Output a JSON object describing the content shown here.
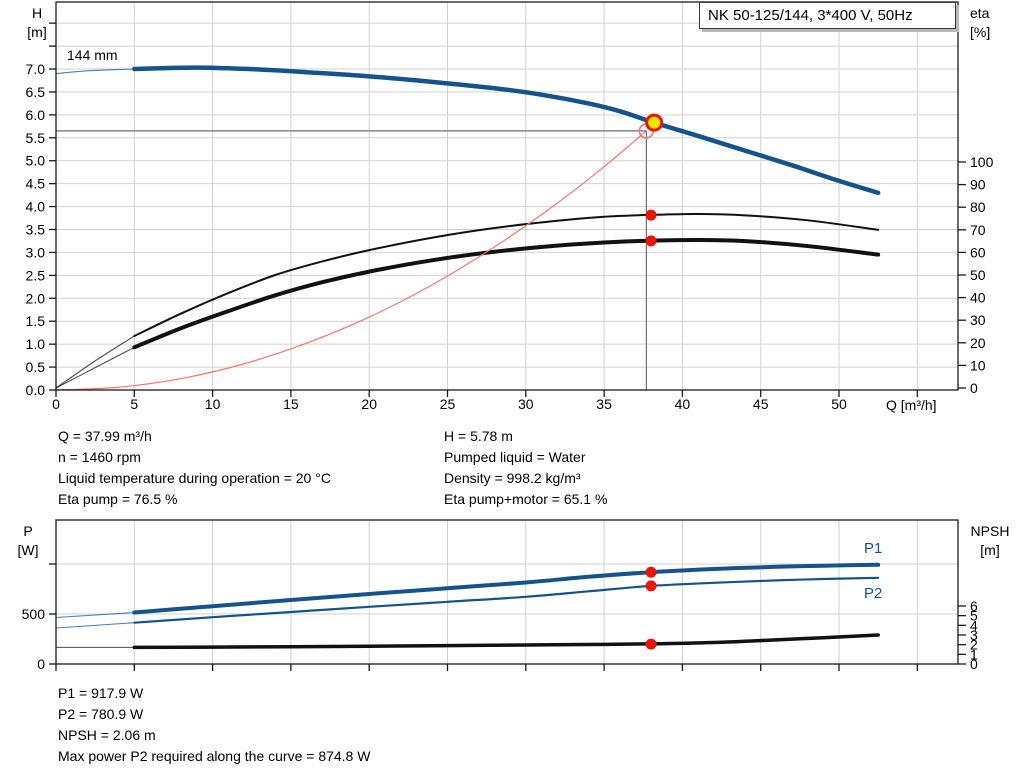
{
  "title_box": {
    "label": "NK 50-125/144, 3*400 V, 50Hz"
  },
  "colors": {
    "blue": "#15538f",
    "black": "#111111",
    "red": "#e81507",
    "red_light": "#f4766d",
    "yellow": "#ffe400",
    "grid": "#d2d2d2",
    "frame": "#1a1a1a",
    "crosshair": "#6e6e6e"
  },
  "labels": {
    "h_axis_1": "H",
    "h_axis_2": "[m]",
    "eta_axis_1": "eta",
    "eta_axis_2": "[%]",
    "q_axis": "Q [m³/h]",
    "p_axis_1": "P",
    "p_axis_2": "[W]",
    "npsh_axis_1": "NPSH",
    "npsh_axis_2": "[m]",
    "impeller": "144 mm",
    "p1_curve": "P1",
    "p2_curve": "P2"
  },
  "info_top": {
    "left": [
      "Q = 37.99 m³/h",
      "n = 1460 rpm",
      "Liquid temperature during operation = 20 °C",
      "Eta pump = 76.5 %"
    ],
    "right": [
      "H = 5.78 m",
      "Pumped liquid = Water",
      "Density = 998.2 kg/m³",
      "Eta pump+motor = 65.1 %"
    ]
  },
  "info_bottom": {
    "lines": [
      "P1 = 917.9 W",
      "P2 = 780.9 W",
      "NPSH = 2.06 m",
      "Max power P2 required along the curve = 874.8 W"
    ]
  },
  "chart_data": [
    {
      "type": "line",
      "id": "qh-eta-chart",
      "title": "NK 50-125/144, 3*400 V, 50Hz",
      "xlabel": "Q [m³/h]",
      "ylabel_left": "H [m]",
      "ylabel_right": "eta [%]",
      "x_range": [
        0,
        57.6
      ],
      "y_left_range": [
        0,
        8.5
      ],
      "y_right_range": [
        0,
        100
      ],
      "x_tick_values": [
        0,
        5,
        10,
        15,
        20,
        25,
        30,
        35,
        40,
        45,
        50,
        55
      ],
      "x_tick_labels": [
        "0",
        "5",
        "10",
        "15",
        "20",
        "25",
        "30",
        "35",
        "40",
        "45",
        "50",
        ""
      ],
      "left_tick_values": [
        0,
        0.5,
        1,
        1.5,
        2,
        2.5,
        3,
        3.5,
        4,
        4.5,
        5,
        5.5,
        6,
        6.5,
        7,
        7.5,
        8
      ],
      "left_tick_labels": [
        "0.0",
        "0.5",
        "1.0",
        "1.5",
        "2.0",
        "2.5",
        "3.0",
        "3.5",
        "4.0",
        "4.5",
        "5.0",
        "5.5",
        "6.0",
        "6.5",
        "7.0",
        "",
        ""
      ],
      "right_tick_values": [
        0,
        10,
        20,
        30,
        40,
        50,
        60,
        70,
        80,
        90,
        100
      ],
      "right_tick_labels": [
        "0",
        "10",
        "20",
        "30",
        "40",
        "50",
        "60",
        "70",
        "80",
        "90",
        "100"
      ],
      "series": [
        {
          "name": "qh-curve-144mm",
          "axis": "left",
          "color": "blue",
          "width": 4.5,
          "thin_until": 5,
          "points": [
            [
              0,
              6.9
            ],
            [
              2,
              6.96
            ],
            [
              5,
              7.0
            ],
            [
              9,
              7.03
            ],
            [
              13,
              6.99
            ],
            [
              16,
              6.93
            ],
            [
              20,
              6.84
            ],
            [
              24,
              6.72
            ],
            [
              28,
              6.58
            ],
            [
              31,
              6.44
            ],
            [
              34,
              6.25
            ],
            [
              36,
              6.08
            ],
            [
              38.2,
              5.83
            ],
            [
              41,
              5.54
            ],
            [
              44,
              5.22
            ],
            [
              47,
              4.9
            ],
            [
              50,
              4.56
            ],
            [
              52.5,
              4.3
            ]
          ]
        },
        {
          "name": "eta-pump-curve",
          "axis": "right",
          "color": "black",
          "width": 2,
          "thin_until": 5,
          "points": [
            [
              0,
              0
            ],
            [
              2.5,
              12
            ],
            [
              5,
              23
            ],
            [
              8,
              33
            ],
            [
              11,
              42
            ],
            [
              14,
              50
            ],
            [
              17,
              56
            ],
            [
              20,
              61
            ],
            [
              24,
              66.5
            ],
            [
              28,
              70.8
            ],
            [
              32,
              74
            ],
            [
              35,
              75.8
            ],
            [
              38,
              76.6
            ],
            [
              41,
              77
            ],
            [
              44,
              76.4
            ],
            [
              48,
              74.2
            ],
            [
              52.5,
              70
            ]
          ]
        },
        {
          "name": "eta-pump-motor-curve",
          "axis": "right",
          "color": "black",
          "width": 4,
          "thin_until": 5,
          "points": [
            [
              0,
              0
            ],
            [
              2.5,
              9
            ],
            [
              5,
              18
            ],
            [
              8,
              26.5
            ],
            [
              11,
              34
            ],
            [
              14,
              41
            ],
            [
              17,
              46.8
            ],
            [
              20,
              51.5
            ],
            [
              24,
              56.5
            ],
            [
              28,
              60.3
            ],
            [
              32,
              63
            ],
            [
              35,
              64.4
            ],
            [
              38,
              65.2
            ],
            [
              41,
              65.5
            ],
            [
              44,
              65
            ],
            [
              48,
              62.8
            ],
            [
              52.5,
              59
            ]
          ]
        },
        {
          "name": "system-curve",
          "axis": "left",
          "color": "red_light",
          "width": 1.2,
          "thin_until": 0,
          "points": [
            [
              0,
              0
            ],
            [
              4,
              0.06
            ],
            [
              8,
              0.25
            ],
            [
              12,
              0.57
            ],
            [
              16,
              1.02
            ],
            [
              20,
              1.59
            ],
            [
              24,
              2.29
            ],
            [
              28,
              3.12
            ],
            [
              32,
              4.07
            ],
            [
              35,
              4.87
            ],
            [
              37.7,
              5.65
            ]
          ]
        }
      ],
      "crosshair": {
        "q": 37.7,
        "h": 5.65
      },
      "duty_point": {
        "q": 37.99,
        "h": 5.78,
        "marker_q": 38.2,
        "marker_h": 5.83
      },
      "dots": [
        {
          "name": "eta-pump-duty-dot",
          "q": 38,
          "v": 76.5,
          "axis": "right"
        },
        {
          "name": "eta-pump-motor-duty-dot",
          "q": 38,
          "v": 65.1,
          "axis": "right"
        }
      ]
    },
    {
      "type": "line",
      "id": "power-npsh-chart",
      "xlabel": "",
      "ylabel_left": "P [W]",
      "ylabel_right": "NPSH [m]",
      "x_range": [
        0,
        57.6
      ],
      "y_left_range": [
        0,
        1440
      ],
      "y_right_range": [
        0,
        14.9
      ],
      "x_tick_values": [
        0,
        5,
        10,
        15,
        20,
        25,
        30,
        35,
        40,
        45,
        50,
        55
      ],
      "x_tick_labels": [
        "",
        "",
        "",
        "",
        "",
        "",
        "",
        "",
        "",
        "",
        "",
        ""
      ],
      "left_tick_values": [
        0,
        500,
        1000
      ],
      "left_tick_labels": [
        "0",
        "500",
        ""
      ],
      "right_tick_values": [
        0,
        1,
        2,
        3,
        4,
        5,
        6
      ],
      "right_tick_labels": [
        "0",
        "1",
        "2",
        "3",
        "4",
        "5",
        "6"
      ],
      "series": [
        {
          "name": "p1-curve",
          "axis": "left",
          "color": "blue",
          "width": 4,
          "thin_until": 5,
          "points": [
            [
              0,
              465
            ],
            [
              5,
              515
            ],
            [
              10,
              578
            ],
            [
              15,
              640
            ],
            [
              20,
              700
            ],
            [
              25,
              758
            ],
            [
              30,
              815
            ],
            [
              34,
              872
            ],
            [
              38,
              918
            ],
            [
              42,
              950
            ],
            [
              46,
              972
            ],
            [
              49,
              983
            ],
            [
              52.5,
              992
            ]
          ]
        },
        {
          "name": "p2-curve",
          "axis": "left",
          "color": "blue",
          "width": 2.2,
          "thin_until": 5,
          "points": [
            [
              0,
              360
            ],
            [
              5,
              413
            ],
            [
              10,
              468
            ],
            [
              15,
              520
            ],
            [
              20,
              572
            ],
            [
              25,
              622
            ],
            [
              30,
              672
            ],
            [
              34,
              727
            ],
            [
              38,
              781
            ],
            [
              42,
              812
            ],
            [
              46,
              836
            ],
            [
              49,
              850
            ],
            [
              52.5,
              862
            ]
          ]
        },
        {
          "name": "npsh-curve",
          "axis": "right",
          "color": "black",
          "width": 3.5,
          "thin_until": 5,
          "points": [
            [
              0,
              1.72
            ],
            [
              5,
              1.72
            ],
            [
              10,
              1.75
            ],
            [
              15,
              1.79
            ],
            [
              20,
              1.84
            ],
            [
              25,
              1.9
            ],
            [
              30,
              1.97
            ],
            [
              34,
              2.02
            ],
            [
              38,
              2.08
            ],
            [
              42,
              2.22
            ],
            [
              46,
              2.5
            ],
            [
              49,
              2.72
            ],
            [
              52.5,
              3.0
            ]
          ]
        }
      ],
      "dots": [
        {
          "name": "p1-duty-dot",
          "q": 38,
          "v": 917.9,
          "axis": "left"
        },
        {
          "name": "p2-duty-dot",
          "q": 38,
          "v": 780.9,
          "axis": "left"
        },
        {
          "name": "npsh-duty-dot",
          "q": 38,
          "v": 2.06,
          "axis": "right"
        }
      ]
    }
  ]
}
